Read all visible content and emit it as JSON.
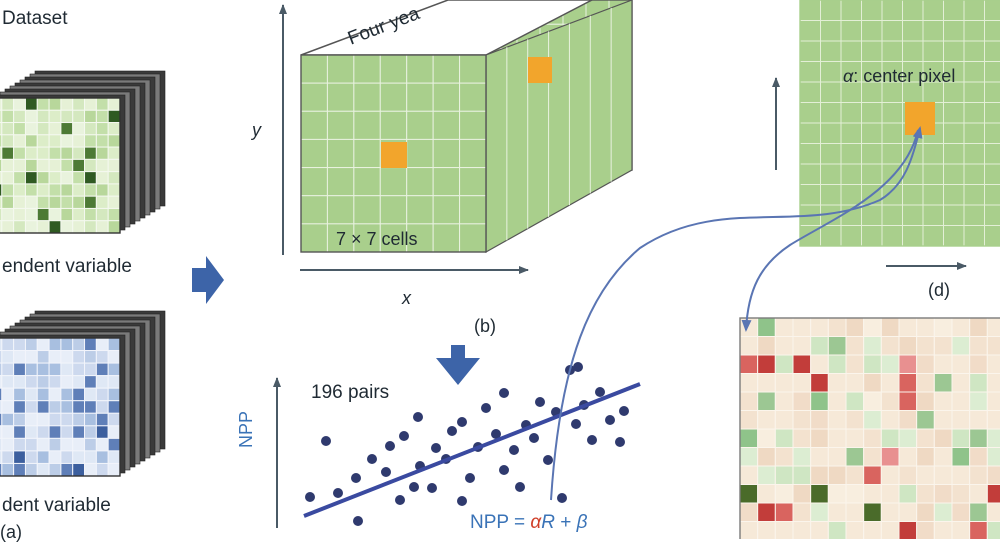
{
  "panel_a": {
    "title": "Dataset",
    "dependent_label": "endent variable",
    "independent_label": "dent variable",
    "panel_label": "(a)"
  },
  "panel_b": {
    "axis_y": "y",
    "axis_x": "x",
    "time_label": "Four yea",
    "cells_label": "7 × 7 cells",
    "panel_label": "(b)"
  },
  "panel_c": {
    "pairs_label": "196 pairs",
    "y_axis_label": "NPP",
    "equation": {
      "lhs": "NPP = ",
      "alpha": "α",
      "var": "R",
      "plus": " + ",
      "beta": "β"
    }
  },
  "panel_d": {
    "alpha_symbol": "α",
    "center_pixel_label": ": center pixel",
    "panel_label": "(d)"
  },
  "colors": {
    "grid_green": "#a9cf8c",
    "grid_line": "#e8f2df",
    "highlight_orange": "#f2a52c",
    "arrow_blue": "#3d64a8",
    "curve_blue": "#5a75b3",
    "point_navy": "#2f3a6e",
    "text_dark": "#1f2a33",
    "npp_blue": "#3a73b7",
    "alpha_red": "#d0402a"
  }
}
